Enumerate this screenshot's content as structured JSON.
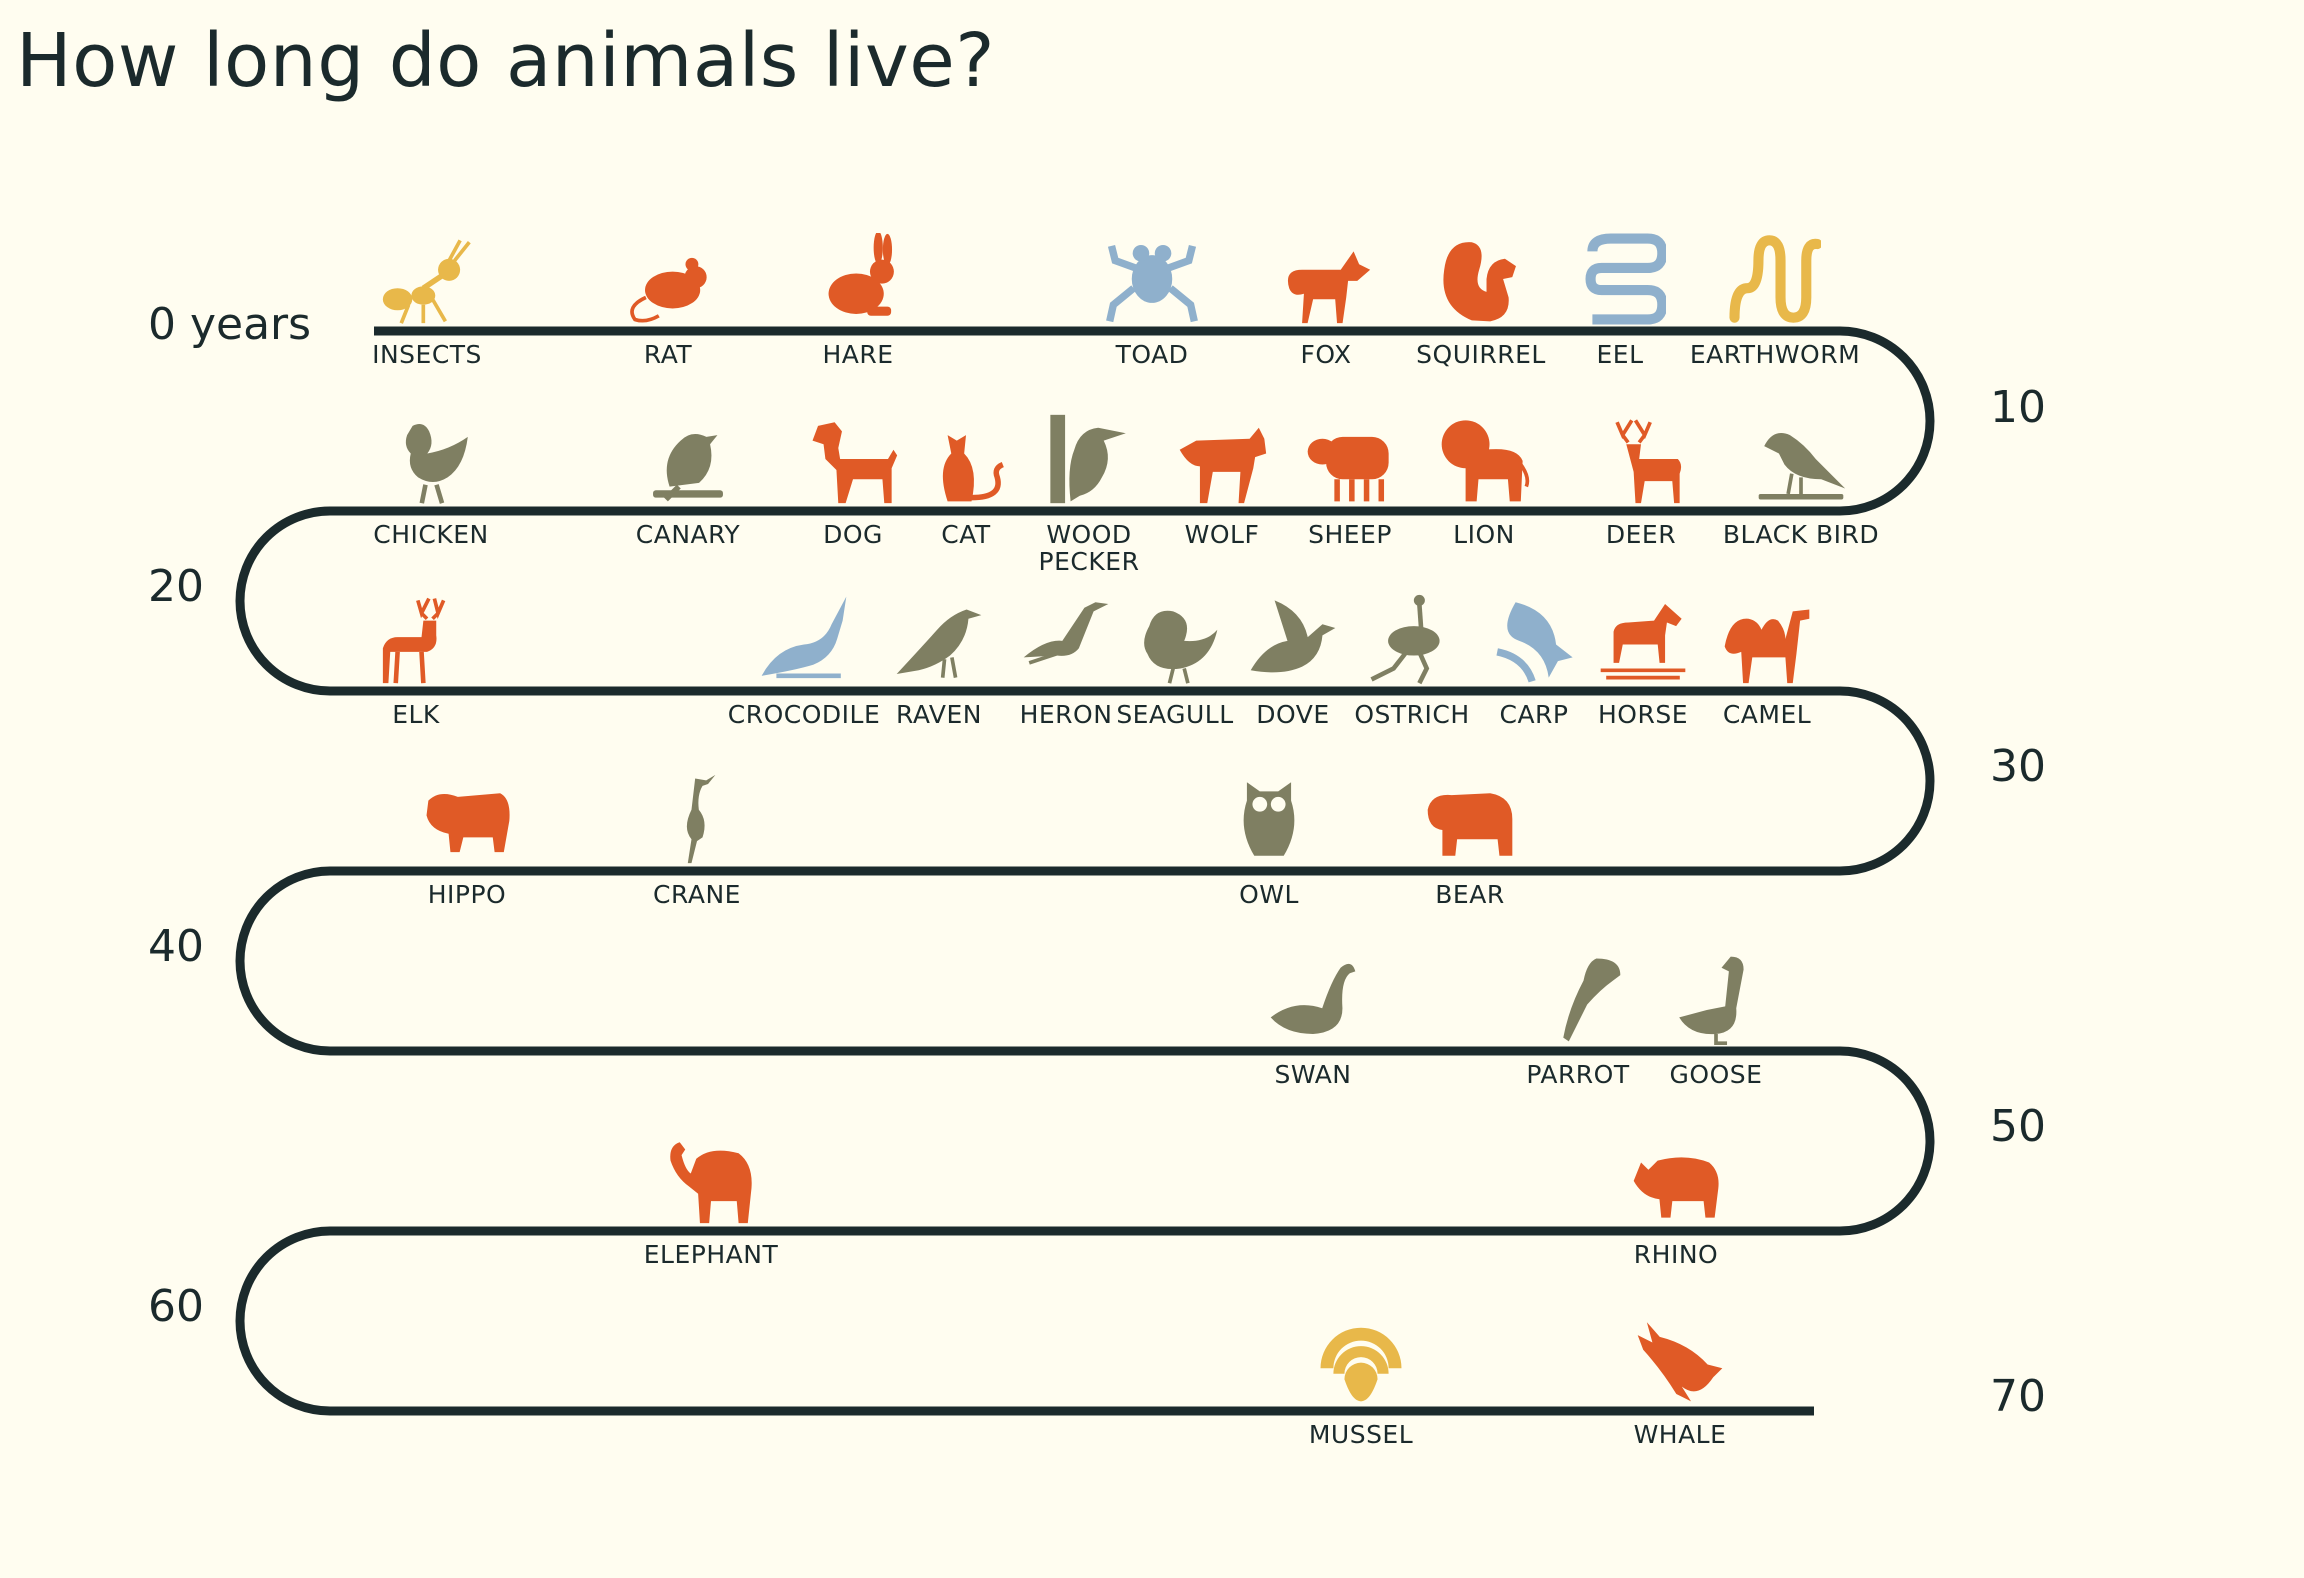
{
  "title": "How long do animals live?",
  "colors": {
    "orange": "#e05a26",
    "olive": "#7f7f62",
    "blue": "#8fb0cc",
    "yellow": "#e8b84a",
    "track": "#1b2a2c",
    "background": "#fffdf0"
  },
  "year_labels": [
    "0 years",
    "10",
    "20",
    "30",
    "40",
    "50",
    "60",
    "70"
  ],
  "rows": [
    {
      "animals": [
        {
          "name": "INSECTS",
          "icon": "ant-icon",
          "color": "yellow"
        },
        {
          "name": "RAT",
          "icon": "rat-icon",
          "color": "orange"
        },
        {
          "name": "HARE",
          "icon": "hare-icon",
          "color": "orange"
        },
        {
          "name": "TOAD",
          "icon": "toad-icon",
          "color": "blue"
        },
        {
          "name": "FOX",
          "icon": "fox-icon",
          "color": "orange"
        },
        {
          "name": "SQUIRREL",
          "icon": "squirrel-icon",
          "color": "orange"
        },
        {
          "name": "EEL",
          "icon": "eel-icon",
          "color": "blue"
        },
        {
          "name": "EARTHWORM",
          "icon": "earthworm-icon",
          "color": "yellow"
        }
      ]
    },
    {
      "animals": [
        {
          "name": "CHICKEN",
          "icon": "chicken-icon",
          "color": "olive"
        },
        {
          "name": "CANARY",
          "icon": "canary-icon",
          "color": "olive"
        },
        {
          "name": "DOG",
          "icon": "dog-icon",
          "color": "orange"
        },
        {
          "name": "CAT",
          "icon": "cat-icon",
          "color": "orange"
        },
        {
          "name": "WOOD\nPECKER",
          "icon": "woodpecker-icon",
          "color": "olive"
        },
        {
          "name": "WOLF",
          "icon": "wolf-icon",
          "color": "orange"
        },
        {
          "name": "SHEEP",
          "icon": "sheep-icon",
          "color": "orange"
        },
        {
          "name": "LION",
          "icon": "lion-icon",
          "color": "orange"
        },
        {
          "name": "DEER",
          "icon": "deer-icon",
          "color": "orange"
        },
        {
          "name": "BLACK BIRD",
          "icon": "blackbird-icon",
          "color": "olive"
        }
      ]
    },
    {
      "animals": [
        {
          "name": "ELK",
          "icon": "elk-icon",
          "color": "orange"
        },
        {
          "name": "CROCODILE",
          "icon": "crocodile-icon",
          "color": "blue"
        },
        {
          "name": "RAVEN",
          "icon": "raven-icon",
          "color": "olive"
        },
        {
          "name": "HERON",
          "icon": "heron-icon",
          "color": "olive"
        },
        {
          "name": "SEAGULL",
          "icon": "seagull-icon",
          "color": "olive"
        },
        {
          "name": "DOVE",
          "icon": "dove-icon",
          "color": "olive"
        },
        {
          "name": "OSTRICH",
          "icon": "ostrich-icon",
          "color": "olive"
        },
        {
          "name": "CARP",
          "icon": "carp-icon",
          "color": "blue"
        },
        {
          "name": "HORSE",
          "icon": "horse-icon",
          "color": "orange"
        },
        {
          "name": "CAMEL",
          "icon": "camel-icon",
          "color": "orange"
        }
      ]
    },
    {
      "animals": [
        {
          "name": "HIPPO",
          "icon": "hippo-icon",
          "color": "orange"
        },
        {
          "name": "CRANE",
          "icon": "crane-icon",
          "color": "olive"
        },
        {
          "name": "OWL",
          "icon": "owl-icon",
          "color": "olive"
        },
        {
          "name": "BEAR",
          "icon": "bear-icon",
          "color": "orange"
        }
      ]
    },
    {
      "animals": [
        {
          "name": "SWAN",
          "icon": "swan-icon",
          "color": "olive"
        },
        {
          "name": "PARROT",
          "icon": "parrot-icon",
          "color": "olive"
        },
        {
          "name": "GOOSE",
          "icon": "goose-icon",
          "color": "olive"
        }
      ]
    },
    {
      "animals": [
        {
          "name": "ELEPHANT",
          "icon": "elephant-icon",
          "color": "orange"
        },
        {
          "name": "RHINO",
          "icon": "rhino-icon",
          "color": "orange"
        }
      ]
    },
    {
      "animals": [
        {
          "name": "MUSSEL",
          "icon": "mussel-icon",
          "color": "yellow"
        },
        {
          "name": "WHALE",
          "icon": "whale-icon",
          "color": "orange"
        }
      ]
    }
  ]
}
